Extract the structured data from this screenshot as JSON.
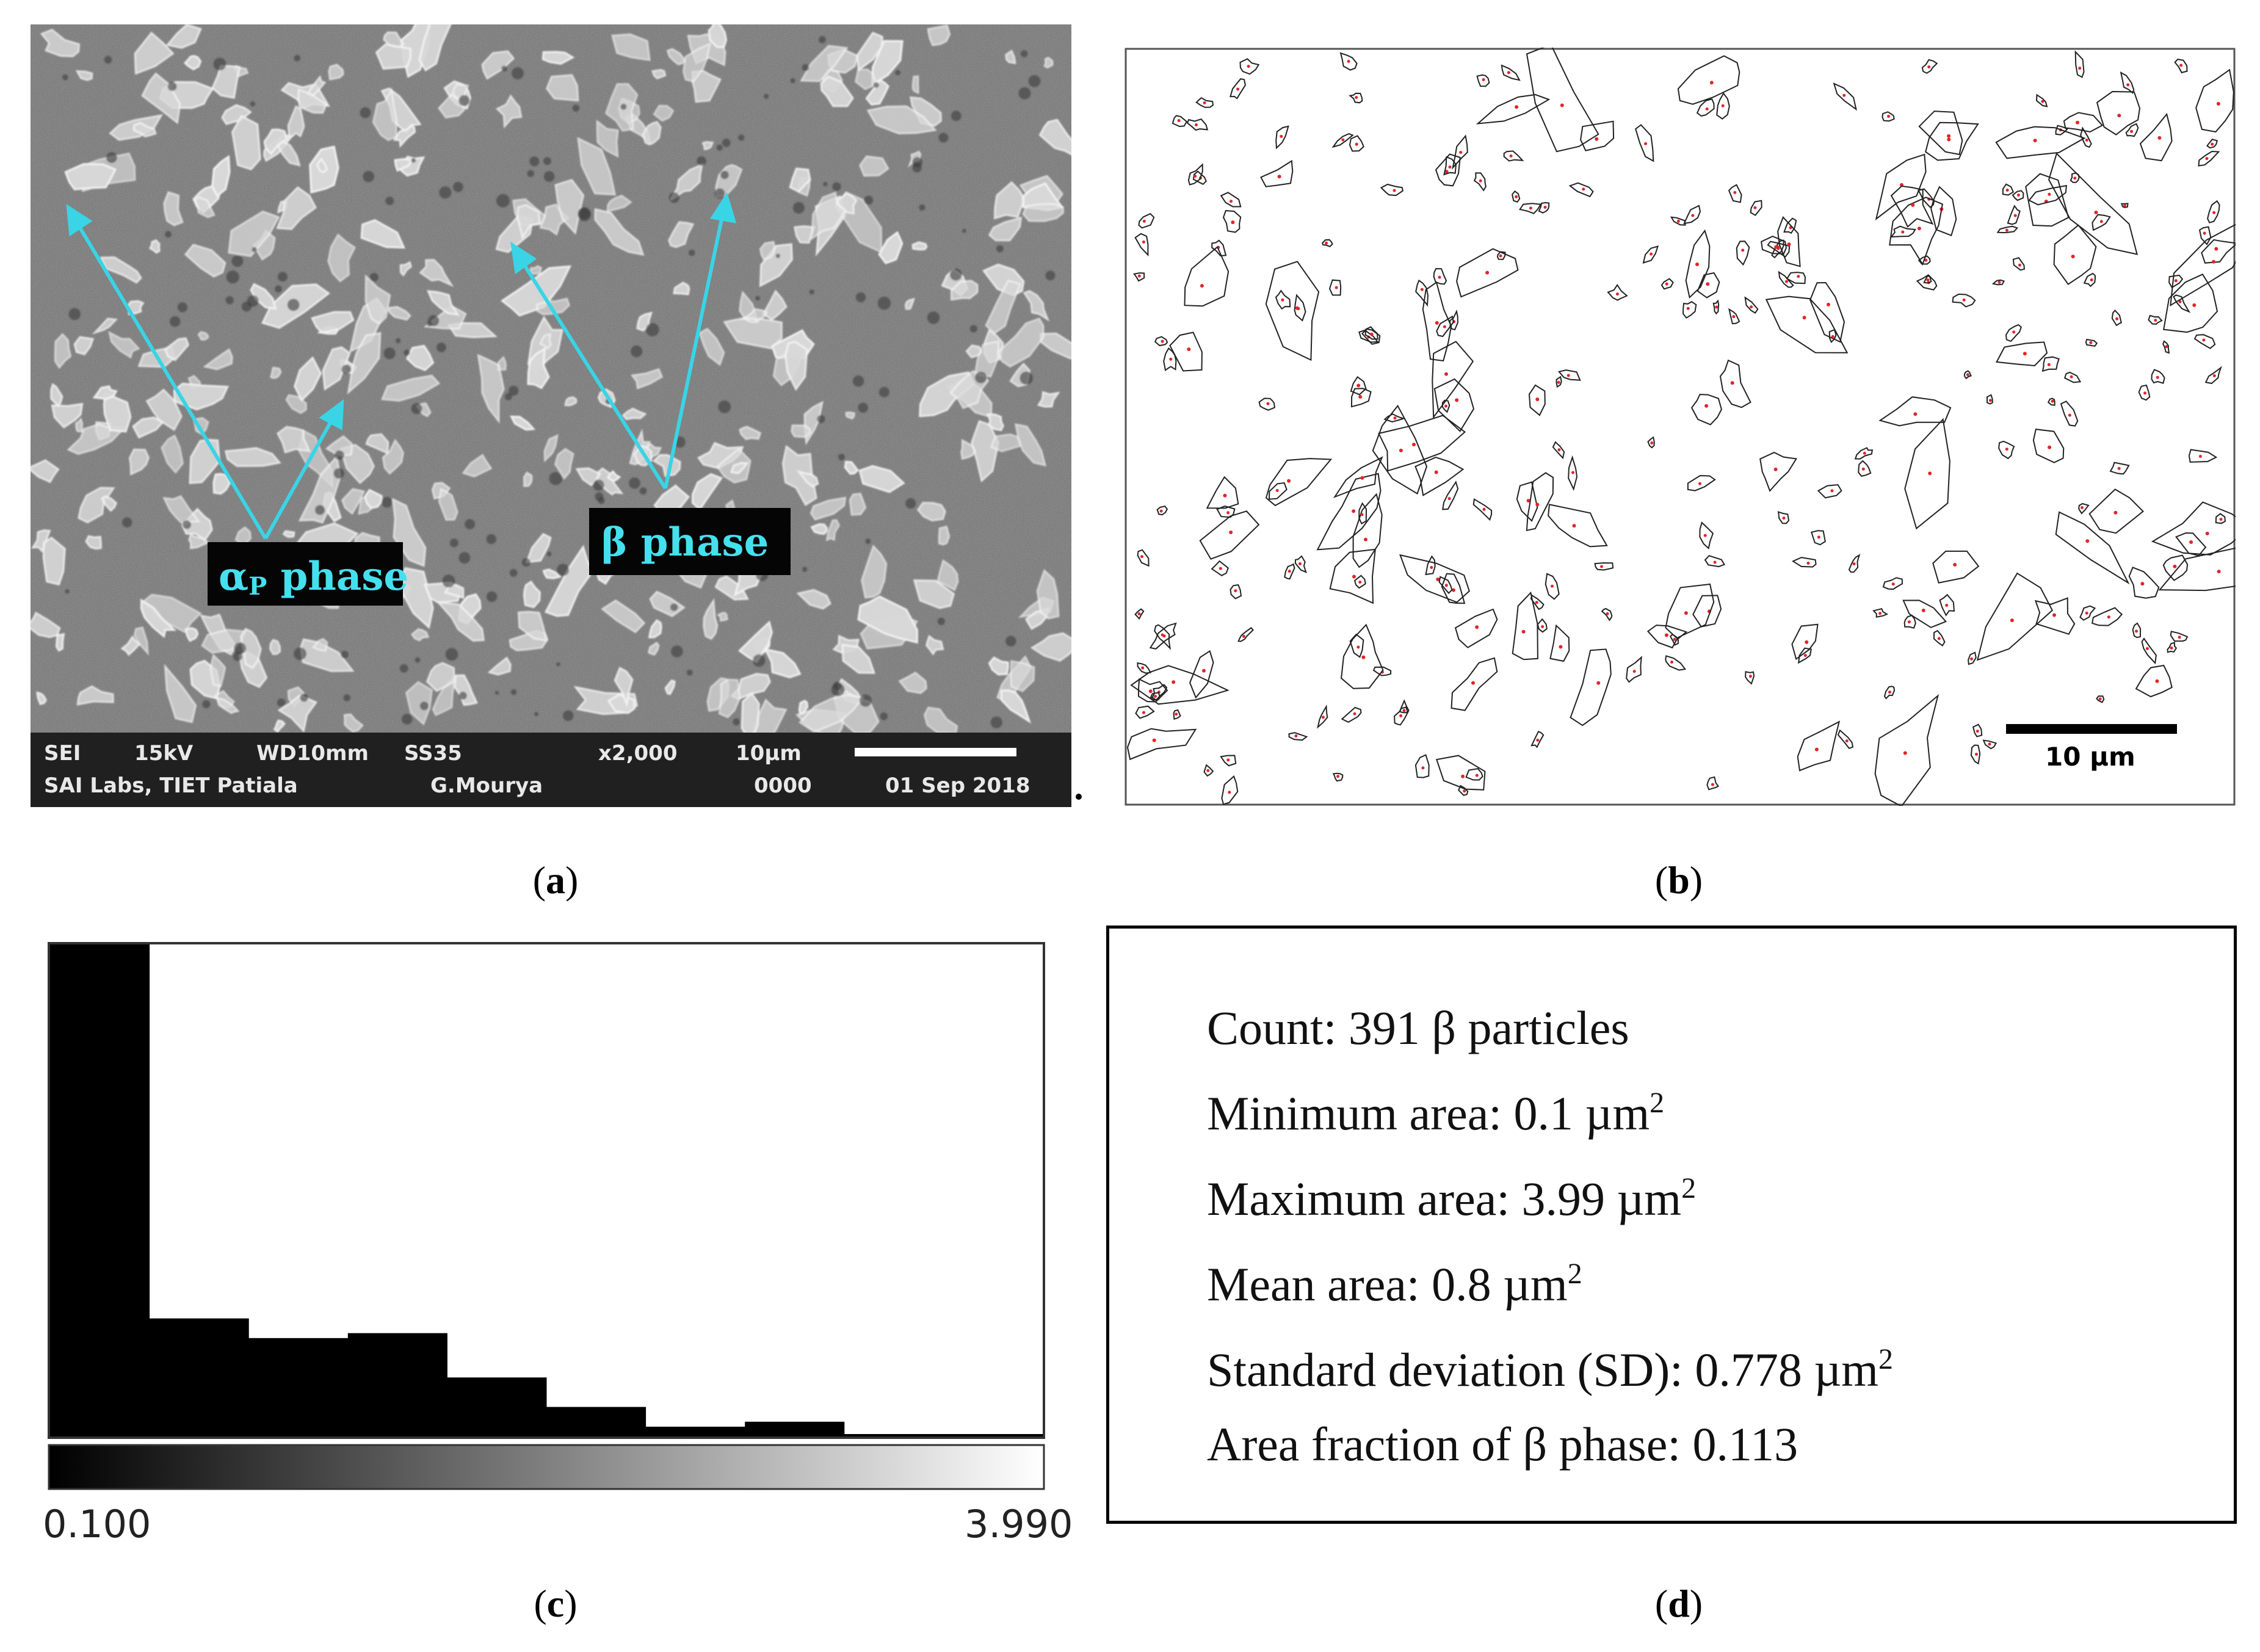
{
  "panel_a": {
    "label_alpha": "α",
    "label_alpha_sub": "P",
    "label_alpha_rest": " phase",
    "label_beta": "β phase",
    "footer": {
      "row1": [
        "SEI",
        "15kV",
        "WD10mm",
        "SS35",
        "x2,000",
        "10µm"
      ],
      "row2": [
        "SAI Labs, TIET Patiala",
        "G.Mourya",
        "0000",
        "01 Sep 2018"
      ]
    },
    "colors": {
      "arrow": "#39d4e6",
      "label_text": "#45e0ee",
      "label_bg": "#050505"
    }
  },
  "panel_b": {
    "scale_label": "10 µm",
    "colors": {
      "outline": "#222222",
      "numbers": "#e0262a"
    }
  },
  "panel_c": {
    "chart_data": {
      "type": "bar",
      "title": "",
      "xlabel": "",
      "ylabel": "",
      "x_min_label": "0.100",
      "x_max_label": "3.990",
      "xlim": [
        0.1,
        3.99
      ],
      "bins": 10,
      "values": [
        1.0,
        0.24,
        0.2,
        0.21,
        0.12,
        0.06,
        0.02,
        0.03,
        0.005,
        0.005
      ],
      "values_note_scale": "relative frequency, normalized to tallest bin",
      "color": "#000000"
    }
  },
  "panel_d": {
    "lines": [
      {
        "text": "Count: 391 β particles",
        "sup": ""
      },
      {
        "text": "Minimum area: 0.1 µm",
        "sup": "2"
      },
      {
        "text": "Maximum area: 3.99 µm",
        "sup": "2"
      },
      {
        "text": "Mean area: 0.8 µm",
        "sup": "2"
      },
      {
        "text": "Standard deviation (SD): 0.778 µm",
        "sup": "2"
      },
      {
        "text": "Area fraction of β phase: 0.113",
        "sup": ""
      }
    ]
  },
  "captions": {
    "a": "a",
    "b": "b",
    "c": "c",
    "d": "d"
  }
}
